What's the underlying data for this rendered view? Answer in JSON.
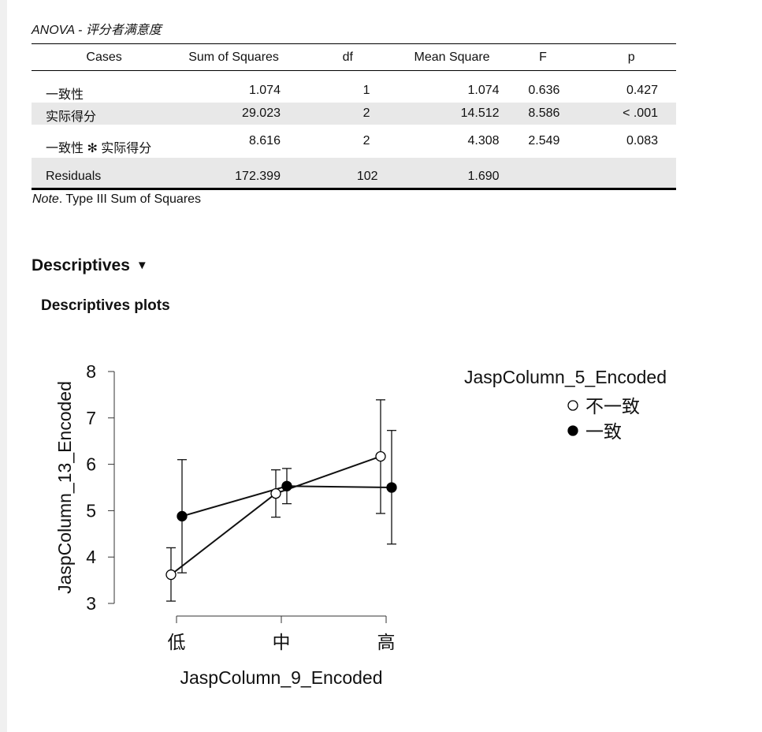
{
  "anova": {
    "title": "ANOVA - 评分者满意度",
    "headers": [
      "Cases",
      "Sum of Squares",
      "df",
      "Mean Square",
      "F",
      "p"
    ],
    "rows": [
      {
        "case": "一致性",
        "ss": "1.074",
        "df": "1",
        "ms": "1.074",
        "f": "0.636",
        "p": "0.427"
      },
      {
        "case": "实际得分",
        "ss": "29.023",
        "df": "2",
        "ms": "14.512",
        "f": "8.586",
        "p": "< .001"
      },
      {
        "case": "一致性 ✻ 实际得分",
        "ss": "8.616",
        "df": "2",
        "ms": "4.308",
        "f": "2.549",
        "p": "0.083"
      },
      {
        "case": "Residuals",
        "ss": "172.399",
        "df": "102",
        "ms": "1.690",
        "f": "",
        "p": ""
      }
    ],
    "note_label": "Note",
    "note_text": ". Type III Sum of Squares"
  },
  "descriptives": {
    "heading": "Descriptives",
    "toggle": "▼",
    "plots_heading": "Descriptives plots"
  },
  "chart_data": {
    "type": "line",
    "xlabel": "JaspColumn_9_Encoded",
    "ylabel": "JaspColumn_13_Encoded",
    "categories": [
      "低",
      "中",
      "高"
    ],
    "yticks": [
      3,
      4,
      5,
      6,
      7,
      8
    ],
    "ylim": [
      3,
      8
    ],
    "legend_title": "JaspColumn_5_Encoded",
    "legend_position": "right",
    "series": [
      {
        "name": "不一致",
        "marker": "open-circle",
        "values": [
          3.62,
          5.37,
          6.17
        ],
        "ci_lower": [
          3.05,
          4.86,
          4.94
        ],
        "ci_upper": [
          4.2,
          5.88,
          7.39
        ]
      },
      {
        "name": "一致",
        "marker": "filled-circle",
        "values": [
          4.88,
          5.53,
          5.5
        ],
        "ci_lower": [
          3.66,
          5.15,
          4.28
        ],
        "ci_upper": [
          6.1,
          5.91,
          6.73
        ]
      }
    ]
  }
}
